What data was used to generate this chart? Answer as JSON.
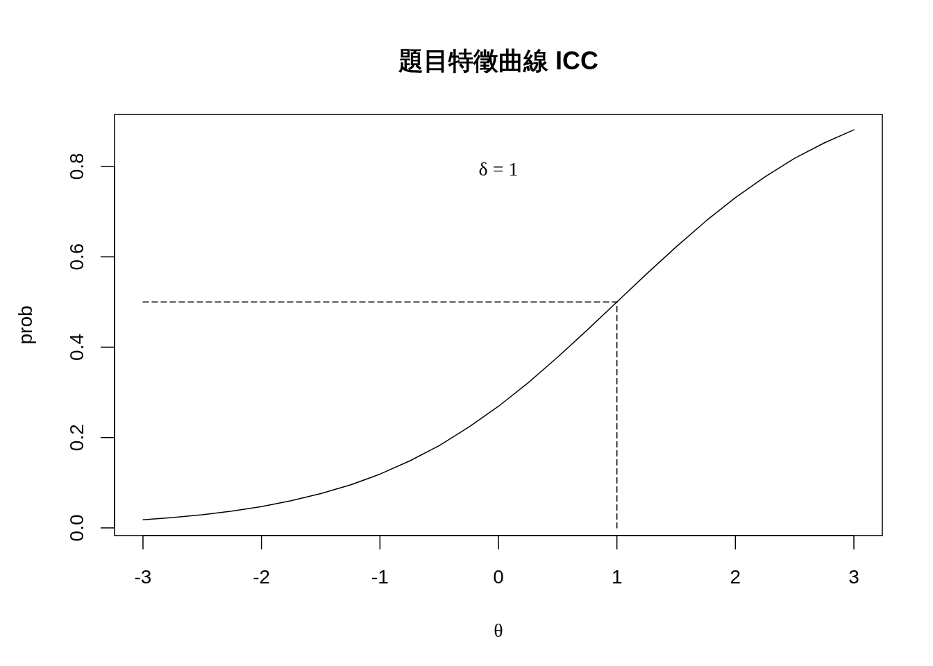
{
  "chart_data": {
    "type": "line",
    "title": "題目特徵曲線 ICC",
    "xlabel": "θ",
    "ylabel": "prob",
    "annotations": [
      "δ = 1"
    ],
    "xlim": [
      -3.24,
      3.24
    ],
    "ylim": [
      -0.017,
      0.915
    ],
    "xticks": [
      -3,
      -2,
      -1,
      0,
      1,
      2,
      3
    ],
    "yticks": [
      {
        "value": 0,
        "label": "0.0"
      },
      0.2,
      0.4,
      0.6,
      0.8
    ],
    "series": [
      {
        "color": "#000000",
        "line_style": "solid",
        "x": [
          -3,
          -2.75,
          -2.5,
          -2.25,
          -2,
          -1.75,
          -1.5,
          -1.25,
          -1,
          -0.75,
          -0.5,
          -0.25,
          0,
          0.25,
          0.5,
          0.75,
          1,
          1.25,
          1.5,
          1.75,
          2,
          2.25,
          2.5,
          2.75,
          3
        ],
        "values": [
          0.018,
          0.023,
          0.029,
          0.037,
          0.047,
          0.06,
          0.076,
          0.095,
          0.119,
          0.148,
          0.182,
          0.223,
          0.269,
          0.321,
          0.378,
          0.438,
          0.5,
          0.562,
          0.622,
          0.679,
          0.731,
          0.777,
          0.818,
          0.852,
          0.881
        ]
      },
      {
        "color": "#000000",
        "line_style": "dashed",
        "x": [
          -3,
          1,
          1
        ],
        "values": [
          0.5,
          0.5,
          0
        ]
      }
    ]
  }
}
